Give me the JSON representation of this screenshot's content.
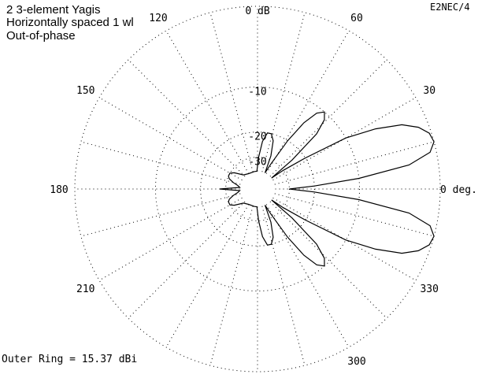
{
  "chart_data": {
    "type": "polar",
    "title_lines": [
      "2 3-element Yagis",
      "Horizontally spaced 1 wl",
      "Out-of-phase"
    ],
    "program_label": "E2NEC/4",
    "footer": "Outer Ring = 15.37 dBi",
    "angle_labels": [
      {
        "angle": 0,
        "text": "0 deg."
      },
      {
        "angle": 30,
        "text": "30"
      },
      {
        "angle": 60,
        "text": "60"
      },
      {
        "angle": 120,
        "text": "120"
      },
      {
        "angle": 150,
        "text": "150"
      },
      {
        "angle": 180,
        "text": "180"
      },
      {
        "angle": 210,
        "text": "210"
      },
      {
        "angle": 330,
        "text": "330"
      },
      {
        "angle": 300,
        "text": "300"
      }
    ],
    "ring_labels": [
      {
        "db": 0,
        "text": "0 dB"
      },
      {
        "db": -10,
        "text": "-10"
      },
      {
        "db": -20,
        "text": "-20"
      },
      {
        "db": -30,
        "text": "-30"
      }
    ],
    "rings_db": [
      0,
      -10,
      -20,
      -30
    ],
    "spoke_step_deg": 15,
    "pattern_db": [
      [
        0,
        -30
      ],
      [
        3,
        -20
      ],
      [
        6,
        -10
      ],
      [
        9,
        -3
      ],
      [
        12,
        -0.6
      ],
      [
        15,
        0
      ],
      [
        18,
        -0.2
      ],
      [
        21,
        -1
      ],
      [
        24,
        -2.5
      ],
      [
        27,
        -5.5
      ],
      [
        30,
        -10
      ],
      [
        33,
        -20
      ],
      [
        36,
        -30
      ],
      [
        38,
        -40
      ],
      [
        40,
        -24
      ],
      [
        43,
        -14
      ],
      [
        46,
        -11
      ],
      [
        49,
        -10
      ],
      [
        52,
        -11
      ],
      [
        55,
        -14
      ],
      [
        58,
        -20
      ],
      [
        62,
        -32
      ],
      [
        65,
        -40
      ],
      [
        68,
        -28
      ],
      [
        72,
        -22
      ],
      [
        76,
        -20
      ],
      [
        80,
        -20
      ],
      [
        84,
        -23
      ],
      [
        88,
        -30
      ],
      [
        92,
        -40
      ],
      [
        100,
        -40
      ],
      [
        120,
        -40
      ],
      [
        135,
        -38
      ],
      [
        145,
        -32
      ],
      [
        150,
        -30
      ],
      [
        156,
        -30
      ],
      [
        160,
        -31
      ],
      [
        165,
        -34
      ],
      [
        170,
        -38
      ],
      [
        175,
        -40
      ],
      [
        180,
        -27
      ],
      [
        185,
        -40
      ],
      [
        190,
        -38
      ],
      [
        195,
        -34
      ],
      [
        200,
        -31
      ],
      [
        204,
        -30
      ],
      [
        210,
        -30
      ],
      [
        215,
        -32
      ],
      [
        225,
        -38
      ],
      [
        240,
        -40
      ],
      [
        260,
        -40
      ],
      [
        268,
        -40
      ],
      [
        272,
        -30
      ],
      [
        276,
        -23
      ],
      [
        280,
        -20
      ],
      [
        284,
        -20
      ],
      [
        288,
        -22
      ],
      [
        292,
        -28
      ],
      [
        295,
        -40
      ],
      [
        298,
        -32
      ],
      [
        302,
        -20
      ],
      [
        305,
        -14
      ],
      [
        308,
        -11
      ],
      [
        311,
        -10
      ],
      [
        314,
        -11
      ],
      [
        317,
        -14
      ],
      [
        320,
        -24
      ],
      [
        322,
        -40
      ],
      [
        324,
        -30
      ],
      [
        327,
        -20
      ],
      [
        330,
        -10
      ],
      [
        333,
        -5.5
      ],
      [
        336,
        -2.5
      ],
      [
        339,
        -1
      ],
      [
        342,
        -0.2
      ],
      [
        345,
        0
      ],
      [
        348,
        -0.6
      ],
      [
        351,
        -3
      ],
      [
        354,
        -10
      ],
      [
        357,
        -20
      ],
      [
        360,
        -30
      ]
    ]
  }
}
